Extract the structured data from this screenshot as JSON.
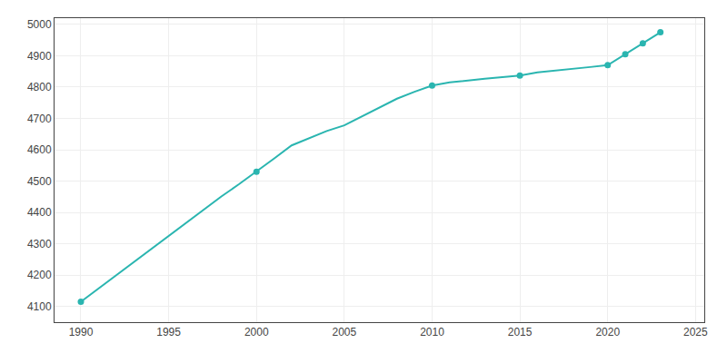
{
  "chart_data": {
    "type": "line",
    "series": [
      {
        "type": "line",
        "color": "#2ab5b0",
        "line_style": "solid",
        "x": [
          1990,
          1991,
          1992,
          1993,
          1994,
          1995,
          1996,
          1997,
          1998,
          1999,
          2000,
          2001,
          2002,
          2003,
          2004,
          2005,
          2006,
          2007,
          2008,
          2009,
          2010,
          2011,
          2012,
          2013,
          2014,
          2015,
          2016,
          2017,
          2018,
          2019,
          2020,
          2021,
          2022,
          2023
        ],
        "values": [
          4115,
          4157,
          4199,
          4241,
          4283,
          4325,
          4367,
          4409,
          4451,
          4490,
          4530,
          4572,
          4614,
          4638,
          4660,
          4678,
          4706,
          4735,
          4763,
          4785,
          4805,
          4815,
          4822,
          4827,
          4832,
          4837,
          4847,
          4852,
          4857,
          4864,
          4870,
          4905,
          4940,
          4975
        ]
      },
      {
        "type": "scatter",
        "color": "#2ab5b0",
        "marker": "circle",
        "x": [
          1990,
          2000,
          2010,
          2015,
          2020,
          2021,
          2022,
          2023
        ],
        "values": [
          4115,
          4530,
          4805,
          4837,
          4870,
          4905,
          4940,
          4975
        ]
      }
    ],
    "xlim": [
      1988.5,
      2025.5
    ],
    "ylim": [
      4050,
      5020
    ],
    "xticks": [
      1990,
      1995,
      2000,
      2005,
      2010,
      2015,
      2020,
      2025
    ],
    "yticks": [
      4100,
      4200,
      4300,
      4400,
      4500,
      4600,
      4700,
      4800,
      4900,
      5000
    ],
    "grid": true
  }
}
